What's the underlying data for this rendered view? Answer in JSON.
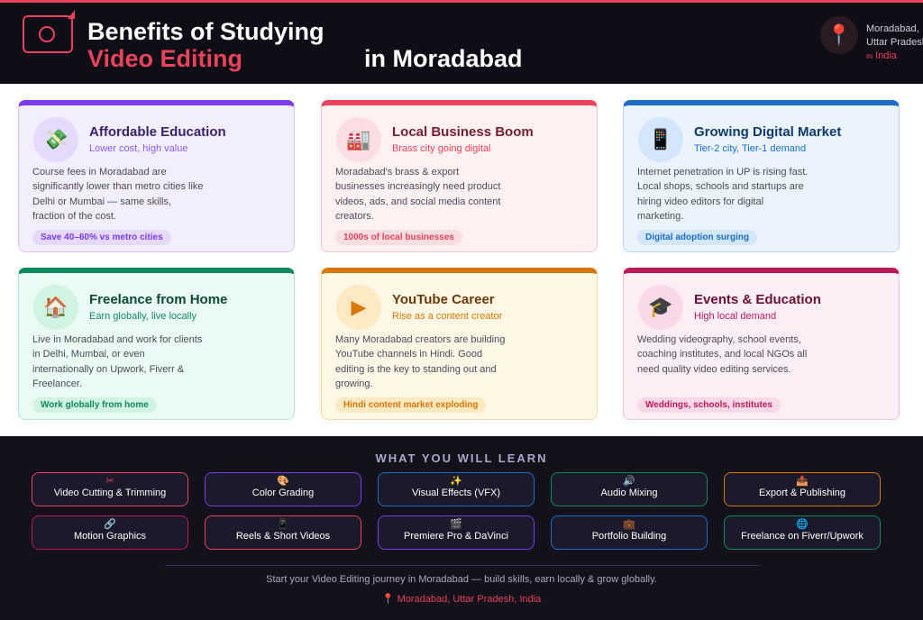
{
  "header": {
    "title_line1": "Benefits of Studying",
    "title_highlight": "Video Editing",
    "title_line2": "in Moradabad",
    "location_line1": "Moradabad,",
    "location_line2": "Uttar Pradesh",
    "location_flag": "IN",
    "location_country": "India"
  },
  "cards": [
    {
      "title": "Affordable Education",
      "subtitle": "Lower cost, high value",
      "icon": "💸",
      "body": "Course fees in Moradabad are significantly lower than metro cities like Delhi or Mumbai — same skills, fraction of the cost.",
      "tag": "Save 40–60% vs metro cities",
      "accent": "#7c3aed"
    },
    {
      "title": "Local Business Boom",
      "subtitle": "Brass city going digital",
      "icon": "🏭",
      "body": "Moradabad's brass & export businesses increasingly need product videos, ads, and social media content creators.",
      "tag": "1000s of local businesses",
      "accent": "#e8435a"
    },
    {
      "title": "Growing Digital Market",
      "subtitle": "Tier-2 city, Tier-1 demand",
      "icon": "📱",
      "body": "Internet penetration in UP is rising fast. Local shops, schools and startups are hiring video editors for digital marketing.",
      "tag": "Digital adoption surging",
      "accent": "#1a6fc4"
    },
    {
      "title": "Freelance from Home",
      "subtitle": "Earn globally, live locally",
      "icon": "🏠",
      "body": "Live in Moradabad and work for clients in Delhi, Mumbai, or even internationally on Upwork, Fiverr & Freelancer.",
      "tag": "Work globally from home",
      "accent": "#0f8a5f"
    },
    {
      "title": "YouTube Career",
      "subtitle": "Rise as a content creator",
      "icon": "▶",
      "body": "Many Moradabad creators are building YouTube channels in Hindi. Good editing is the key to standing out and growing.",
      "tag": "Hindi content market exploding",
      "accent": "#d97706"
    },
    {
      "title": "Events & Education",
      "subtitle": "High local demand",
      "icon": "🎓",
      "body": "Wedding videography, school events, coaching institutes, and local NGOs all need quality video editing services.",
      "tag": "Weddings, schools, institutes",
      "accent": "#be185d"
    }
  ],
  "learn": {
    "heading": "WHAT YOU WILL LEARN",
    "skills": [
      {
        "label": "Video Cutting & Trimming",
        "icon": "✂",
        "color": "#e8435a"
      },
      {
        "label": "Color Grading",
        "icon": "🎨",
        "color": "#7c3aed"
      },
      {
        "label": "Visual Effects (VFX)",
        "icon": "✨",
        "color": "#1a6fc4"
      },
      {
        "label": "Audio Mixing",
        "icon": "🔊",
        "color": "#0f8a5f"
      },
      {
        "label": "Export & Publishing",
        "icon": "📤",
        "color": "#d97706"
      },
      {
        "label": "Motion Graphics",
        "icon": "🔗",
        "color": "#be185d"
      },
      {
        "label": "Reels & Short Videos",
        "icon": "📱",
        "color": "#e8435a"
      },
      {
        "label": "Premiere Pro & DaVinci",
        "icon": "🎬",
        "color": "#7c3aed"
      },
      {
        "label": "Portfolio Building",
        "icon": "💼",
        "color": "#1a6fc4"
      },
      {
        "label": "Freelance on Fiverr/Upwork",
        "icon": "🌐",
        "color": "#0f8a5f"
      }
    ]
  },
  "footer": {
    "tagline": "Start your Video Editing journey in Moradabad — build skills, earn locally & grow globally.",
    "location": "📍 Moradabad, Uttar Pradesh, India"
  }
}
